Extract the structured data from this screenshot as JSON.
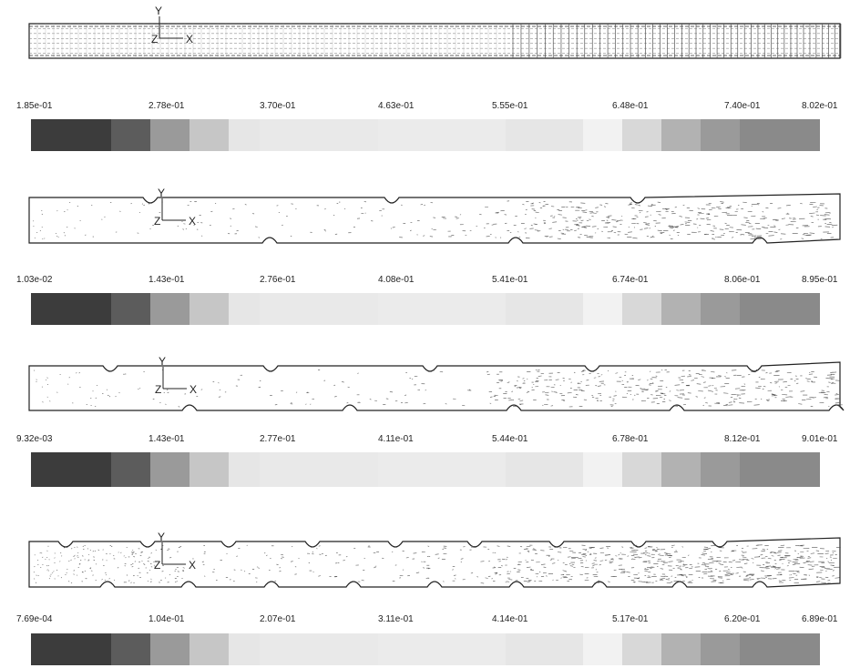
{
  "axis_labels": {
    "y": "Y",
    "z": "Z",
    "x": "X"
  },
  "colors": {
    "swatches": [
      "#3c3c3c",
      "#5c5c5c",
      "#9a9a9a",
      "#c6c6c6",
      "#e6e6e6",
      "#e9e9e9",
      "#ebebeb",
      "#e6e6e6",
      "#f2f2f2",
      "#d8d8d8",
      "#b2b2b2",
      "#9a9a9a",
      "#8a8a8a",
      "#838383"
    ],
    "outline": "#222222",
    "vector": "#555555"
  },
  "panels": [
    {
      "id": "mesh",
      "geometry": {
        "notches_top": 0,
        "notches_bottom": 0
      },
      "legend": [
        "1.85e-01",
        "2.78e-01",
        "3.70e-01",
        "4.63e-01",
        "5.55e-01",
        "6.48e-01",
        "7.40e-01",
        "8.02e-01"
      ]
    },
    {
      "id": "case-1",
      "geometry": {
        "notches_top": 3,
        "notches_bottom": 3
      },
      "legend": [
        "1.03e-02",
        "1.43e-01",
        "2.76e-01",
        "4.08e-01",
        "5.41e-01",
        "6.74e-01",
        "8.06e-01",
        "8.95e-01"
      ]
    },
    {
      "id": "case-2",
      "geometry": {
        "notches_top": 5,
        "notches_bottom": 5
      },
      "legend": [
        "9.32e-03",
        "1.43e-01",
        "2.77e-01",
        "4.11e-01",
        "5.44e-01",
        "6.78e-01",
        "8.12e-01",
        "9.01e-01"
      ]
    },
    {
      "id": "case-3",
      "geometry": {
        "notches_top": 9,
        "notches_bottom": 9
      },
      "legend": [
        "7.69e-04",
        "1.04e-01",
        "2.07e-01",
        "3.11e-01",
        "4.14e-01",
        "5.17e-01",
        "6.20e-01",
        "6.89e-01"
      ]
    }
  ]
}
